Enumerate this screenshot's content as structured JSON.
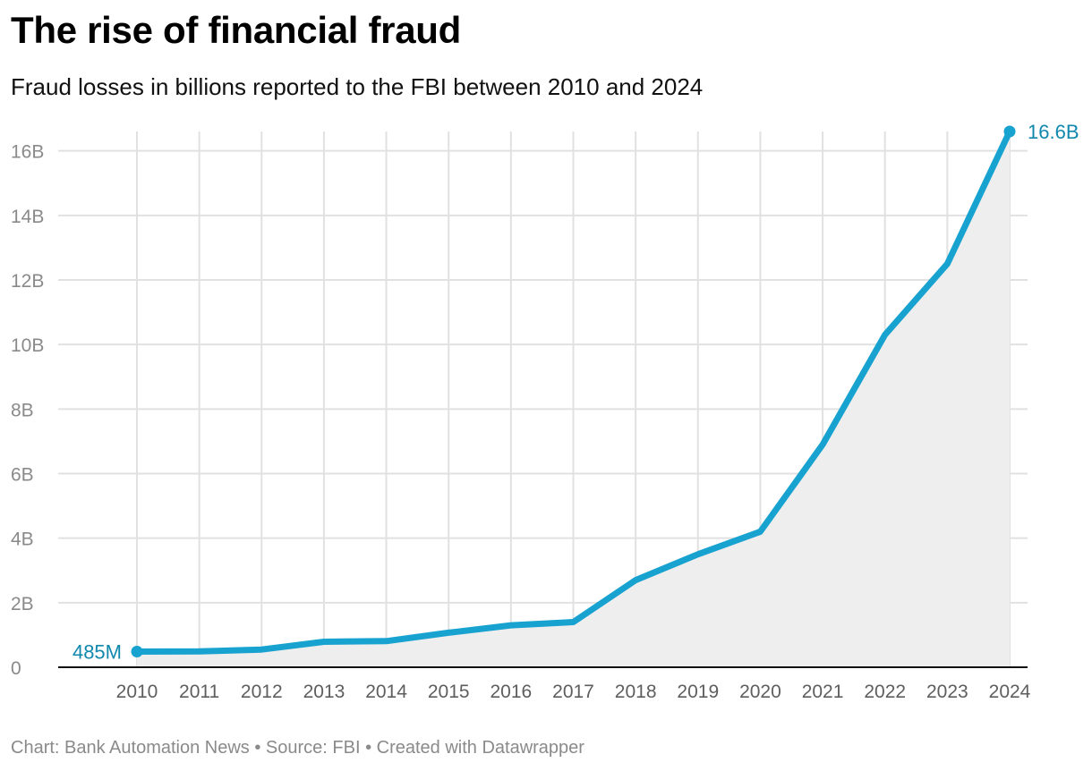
{
  "header": {
    "title": "The rise of financial fraud",
    "subtitle": "Fraud losses in billions reported to the FBI between 2010 and 2024"
  },
  "footer": {
    "text": "Chart: Bank Automation News • Source: FBI • Created with Datawrapper"
  },
  "colors": {
    "line": "#17a2cf",
    "area": "#eeeeee",
    "label": "#1188ad",
    "grid": "#e1e1e1",
    "axis": "#111111"
  },
  "chart_data": {
    "type": "area",
    "x": [
      "2010",
      "2011",
      "2012",
      "2013",
      "2014",
      "2015",
      "2016",
      "2017",
      "2018",
      "2019",
      "2020",
      "2021",
      "2022",
      "2023",
      "2024"
    ],
    "series": [
      {
        "values": [
          0.485,
          0.49,
          0.55,
          0.79,
          0.81,
          1.07,
          1.3,
          1.4,
          2.7,
          3.5,
          4.2,
          6.9,
          10.3,
          12.5,
          16.6
        ]
      }
    ],
    "y_ticks": [
      0,
      2,
      4,
      6,
      8,
      10,
      12,
      14,
      16
    ],
    "y_tick_labels": [
      "0",
      "2B",
      "4B",
      "6B",
      "8B",
      "10B",
      "12B",
      "14B",
      "16B"
    ],
    "ylim": [
      0,
      16.6
    ],
    "annotations": [
      {
        "index": 0,
        "text": "485M",
        "side": "left"
      },
      {
        "index": 14,
        "text": "16.6B",
        "side": "right"
      }
    ],
    "grid": true,
    "xlabel": "",
    "ylabel": ""
  }
}
